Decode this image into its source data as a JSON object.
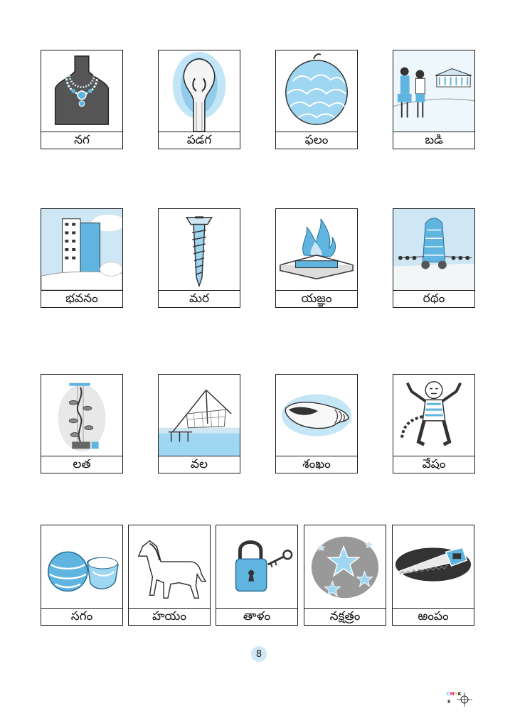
{
  "cards": [
    {
      "id": "naga",
      "label": "నగ",
      "icon": "necklace-icon"
    },
    {
      "id": "padaga",
      "label": "పడగ",
      "icon": "cobra-icon"
    },
    {
      "id": "phalam",
      "label": "ఫలం",
      "icon": "custard-apple-icon"
    },
    {
      "id": "badi",
      "label": "బడి",
      "icon": "school-icon"
    },
    {
      "id": "bhavanam",
      "label": "భవనం",
      "icon": "building-icon"
    },
    {
      "id": "mara",
      "label": "మర",
      "icon": "screw-icon"
    },
    {
      "id": "yagnam",
      "label": "యజ్ఞం",
      "icon": "fire-altar-icon"
    },
    {
      "id": "ratham",
      "label": "రథం",
      "icon": "chariot-icon"
    },
    {
      "id": "latha",
      "label": "లత",
      "icon": "vine-icon"
    },
    {
      "id": "vala",
      "label": "వల",
      "icon": "fishing-net-icon"
    },
    {
      "id": "shankham",
      "label": "శంఖం",
      "icon": "conch-icon"
    },
    {
      "id": "vesham",
      "label": "వేషం",
      "icon": "tiger-costume-icon"
    },
    {
      "id": "sagam",
      "label": "సగం",
      "icon": "half-ball-icon"
    },
    {
      "id": "hayam",
      "label": "హయం",
      "icon": "horse-icon"
    },
    {
      "id": "thalam",
      "label": "తాళం",
      "icon": "padlock-icon"
    },
    {
      "id": "nakshatram",
      "label": "నక్షత్రం",
      "icon": "stars-icon"
    },
    {
      "id": "rampam",
      "label": "ఱంపం",
      "icon": "saw-icon"
    }
  ],
  "page_number": "8",
  "print_marks": {
    "cmyk": "CMYK",
    "page": "8"
  },
  "colors": {
    "accent": "#5fb4e0",
    "light_blue": "#cfe6f4",
    "ink": "#1a1a1a"
  }
}
